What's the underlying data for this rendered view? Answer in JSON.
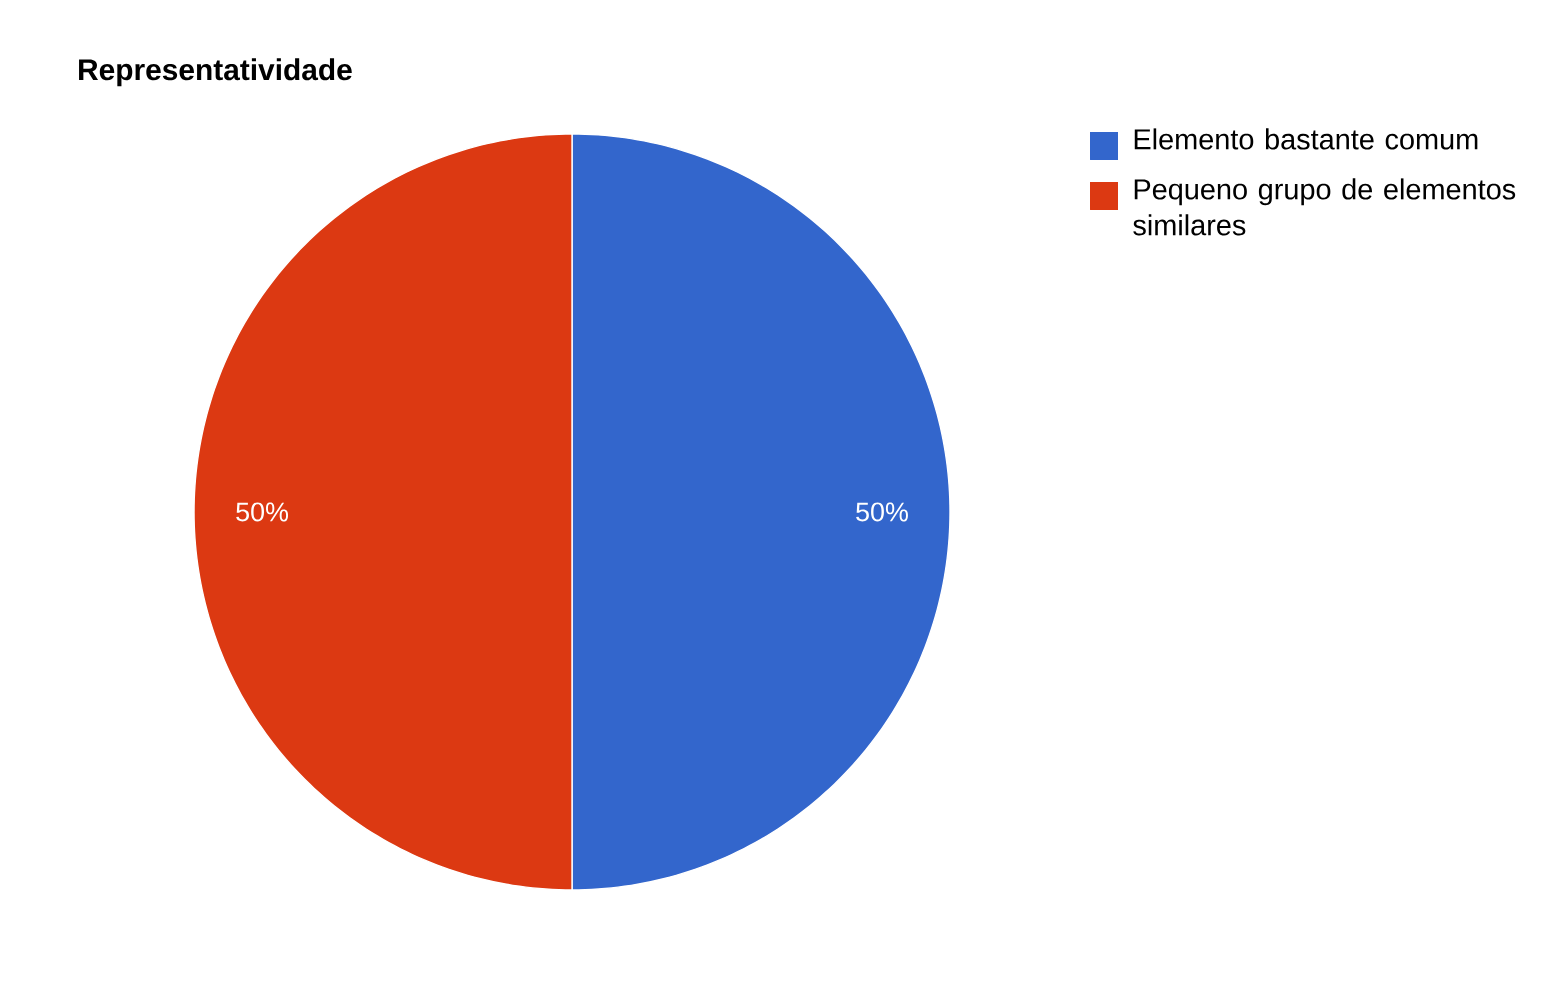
{
  "chart_data": {
    "type": "pie",
    "title": "Representatividade",
    "categories": [
      "Elemento bastante comum",
      "Pequeno grupo de elementos similares"
    ],
    "values": [
      50,
      50
    ],
    "colors": [
      "#3366cc",
      "#dc3912"
    ],
    "value_labels": [
      "50%",
      "50%"
    ],
    "legend": "top right"
  }
}
